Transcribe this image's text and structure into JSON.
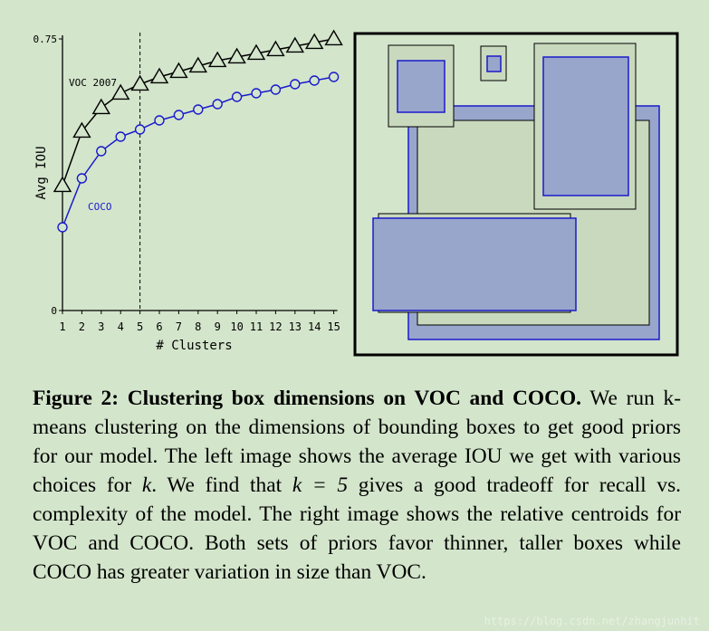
{
  "chart_data": {
    "type": "line",
    "x": [
      1,
      2,
      3,
      4,
      5,
      6,
      7,
      8,
      9,
      10,
      11,
      12,
      13,
      14,
      15
    ],
    "xlabel": "# Clusters",
    "ylabel": "Avg IOU",
    "ylim": [
      0,
      0.75
    ],
    "yticks": [
      "0",
      "0.75"
    ],
    "xticks": [
      "1",
      "2",
      "3",
      "4",
      "5",
      "6",
      "7",
      "8",
      "9",
      "10",
      "11",
      "12",
      "13",
      "14",
      "15"
    ],
    "vline_x": 5,
    "series": [
      {
        "name": "VOC 2007",
        "marker": "triangle",
        "color": "#000000",
        "values": [
          0.345,
          0.495,
          0.56,
          0.6,
          0.625,
          0.645,
          0.66,
          0.675,
          0.69,
          0.7,
          0.71,
          0.72,
          0.73,
          0.74,
          0.75
        ]
      },
      {
        "name": "COCO",
        "marker": "circle",
        "color": "#1a1acc",
        "values": [
          0.23,
          0.365,
          0.44,
          0.48,
          0.5,
          0.525,
          0.54,
          0.555,
          0.57,
          0.59,
          0.6,
          0.61,
          0.625,
          0.635,
          0.645
        ]
      }
    ]
  },
  "centroids": {
    "voc_color": "#c9d9bd",
    "coco_color": "#98a6cc",
    "coco_edge": "#1a1acc",
    "description_counts": {
      "voc": 5,
      "coco": 5
    }
  },
  "caption": {
    "label": "Figure 2:",
    "title": "Clustering box dimensions on VOC and COCO.",
    "seg1": " We run k-means clustering on the dimensions of bounding boxes to get good priors for our model. The left image shows the average IOU we get with various choices for ",
    "k1": "k",
    "seg2": ". We find that ",
    "k2": "k = 5",
    "seg3": " gives a good tradeoff for recall vs. complexity of the model. The right image shows the relative centroids for VOC and COCO. Both sets of priors favor thinner, taller boxes while COCO has greater variation in size than VOC."
  },
  "watermark": "https://blog.csdn.net/zhangjunhit"
}
